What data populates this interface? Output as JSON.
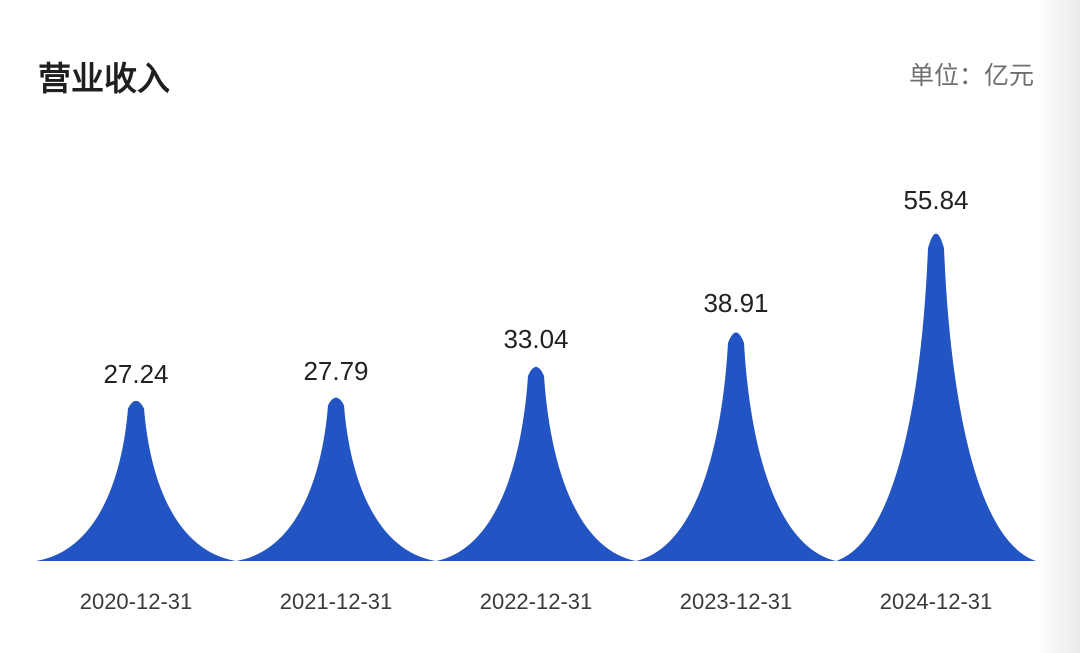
{
  "header": {
    "title": "营业收入",
    "unit": "单位：亿元"
  },
  "colors": {
    "bar": "#2354c4"
  },
  "chart_data": {
    "type": "bar",
    "title": "营业收入",
    "unit": "亿元",
    "categories": [
      "2020-12-31",
      "2021-12-31",
      "2022-12-31",
      "2023-12-31",
      "2024-12-31"
    ],
    "values": [
      27.24,
      27.79,
      33.04,
      38.91,
      55.84
    ],
    "value_labels": [
      "27.24",
      "27.79",
      "33.04",
      "38.91",
      "55.84"
    ],
    "ylim": [
      0,
      55.84
    ],
    "grid": false,
    "legend": "none"
  }
}
